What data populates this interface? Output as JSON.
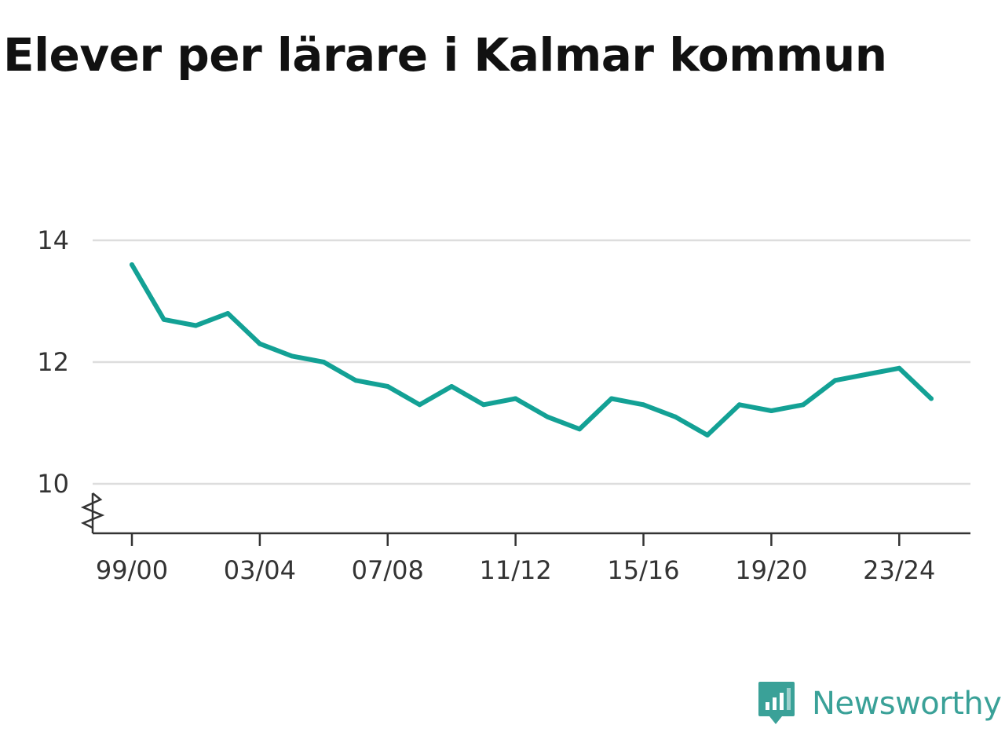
{
  "title": "Elever per lärare i Kalmar kommun",
  "brand": {
    "name": "Newsworthy",
    "color": "#3aa198",
    "icon": "bar-chart-speech-bubble-icon"
  },
  "chart_data": {
    "type": "line",
    "title": "Elever per lärare i Kalmar kommun",
    "xlabel": "",
    "ylabel": "",
    "x": [
      "99/00",
      "00/01",
      "01/02",
      "02/03",
      "03/04",
      "04/05",
      "05/06",
      "06/07",
      "07/08",
      "08/09",
      "09/10",
      "10/11",
      "11/12",
      "12/13",
      "13/14",
      "14/15",
      "15/16",
      "16/17",
      "17/18",
      "18/19",
      "19/20",
      "20/21",
      "21/22",
      "22/23",
      "23/24",
      "24/25"
    ],
    "x_tick_labels": [
      "99/00",
      "03/04",
      "07/08",
      "11/12",
      "15/16",
      "19/20",
      "23/24"
    ],
    "y_tick_labels": [
      "14",
      "12",
      "10"
    ],
    "series": [
      {
        "color": "#13a195",
        "values": [
          13.6,
          12.7,
          12.6,
          12.8,
          12.3,
          12.1,
          12.0,
          11.7,
          11.6,
          11.3,
          11.6,
          11.3,
          11.4,
          11.1,
          10.9,
          11.4,
          11.3,
          11.1,
          10.8,
          11.3,
          11.2,
          11.3,
          11.7,
          11.8,
          11.9,
          11.4
        ]
      }
    ],
    "yticks": [
      10,
      12,
      14
    ],
    "ylim": [
      10,
      14
    ],
    "y_axis_break": true,
    "grid": true,
    "legend": "none"
  }
}
